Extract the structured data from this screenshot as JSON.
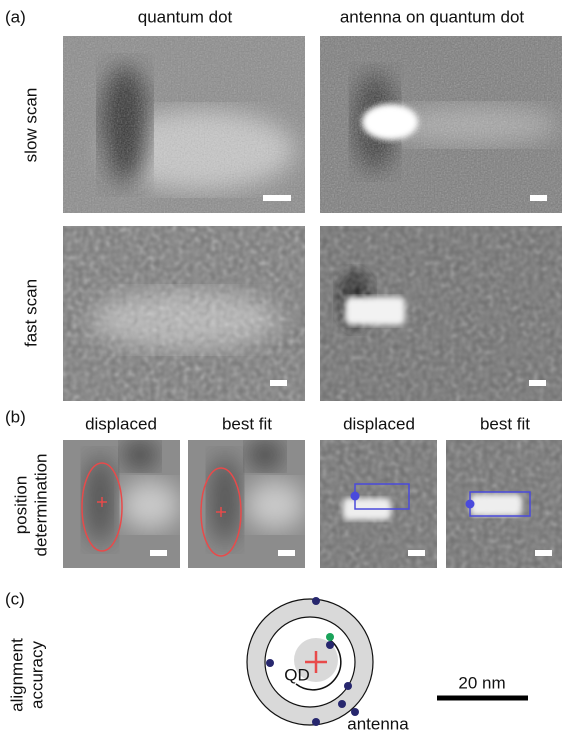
{
  "panels": {
    "a": {
      "label": "(a)",
      "columns": [
        "quantum dot",
        "antenna on quantum dot"
      ],
      "rows": [
        "slow scan",
        "fast scan"
      ]
    },
    "b": {
      "label": "(b)",
      "row_label": [
        "position",
        "determination"
      ],
      "columns": [
        "displaced",
        "best fit",
        "displaced",
        "best fit"
      ]
    },
    "c": {
      "label": "(c)",
      "row_label": [
        "alignment",
        "accuracy"
      ],
      "qd_label": "QD",
      "antenna_label": "antenna",
      "scale_bar": "20 nm"
    }
  }
}
